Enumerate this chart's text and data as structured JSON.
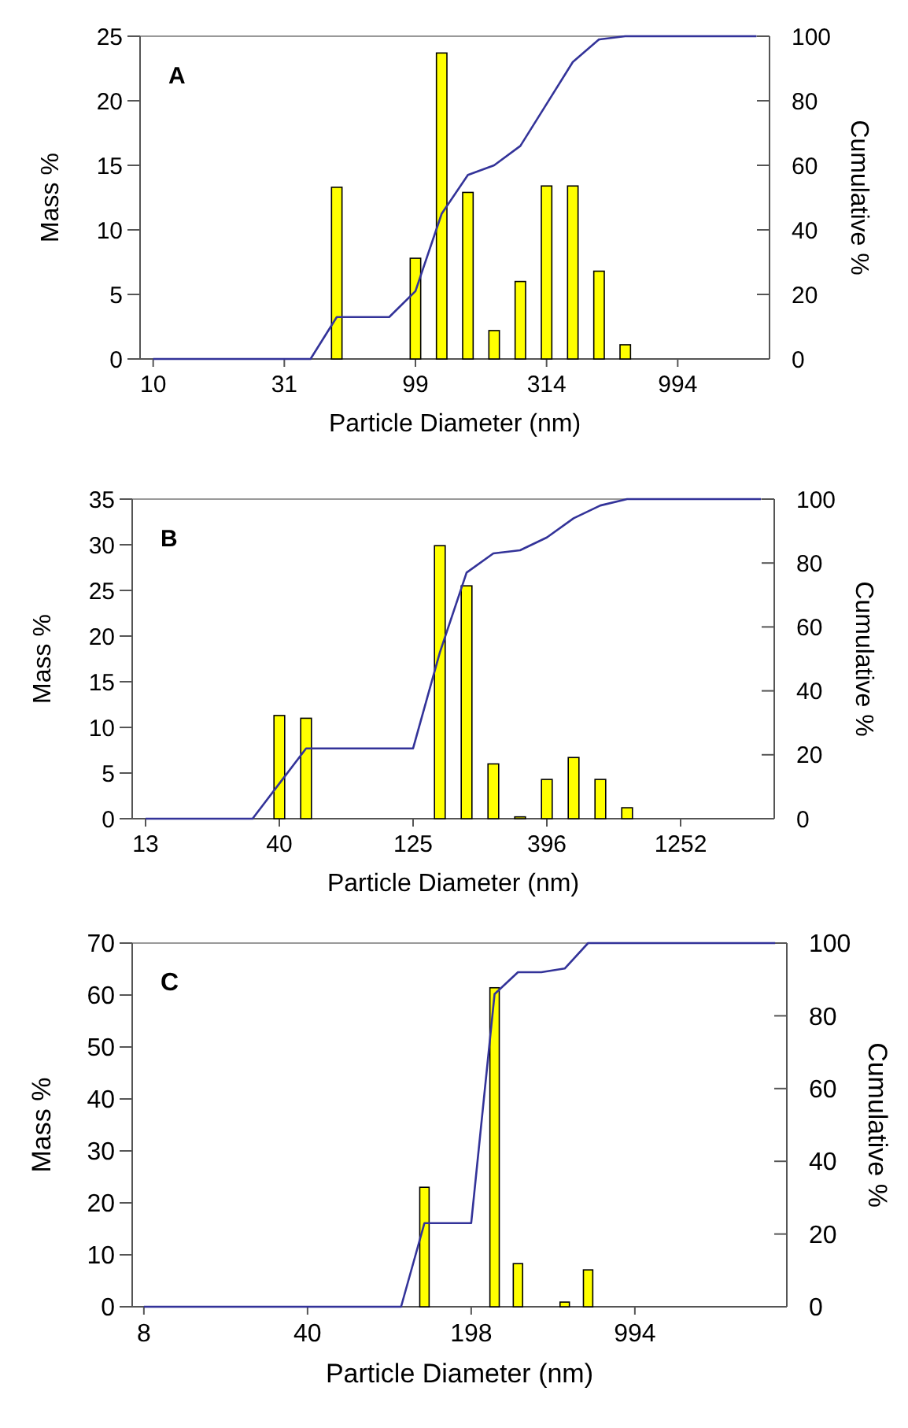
{
  "chart_data": [
    {
      "type": "bar",
      "annotations": [
        "A"
      ],
      "xlabel": "Particle Diameter (nm)",
      "ylabel": "Mass %",
      "y2label": "Cumulative %",
      "categories": [
        "10",
        null,
        null,
        null,
        null,
        "31",
        null,
        null,
        null,
        null,
        "99",
        null,
        null,
        null,
        null,
        "314",
        null,
        null,
        null,
        null,
        "994",
        null,
        null,
        null
      ],
      "series": [
        {
          "color": "#ffff00",
          "values": [
            null,
            null,
            null,
            null,
            null,
            null,
            null,
            13.3,
            null,
            null,
            7.8,
            23.7,
            12.9,
            2.2,
            6.0,
            13.4,
            13.4,
            6.8,
            1.1,
            null,
            null,
            null,
            null,
            null
          ]
        },
        {
          "type": "line",
          "axis": "y2",
          "color": "#333399",
          "values": [
            0,
            0,
            0,
            0,
            0,
            0,
            0,
            13,
            13,
            13,
            21,
            45,
            57,
            60,
            66,
            79,
            92,
            99,
            100,
            100,
            100,
            100,
            100,
            100
          ]
        }
      ],
      "ylim": [
        0,
        25
      ],
      "yticks": [
        0,
        5,
        10,
        15,
        20,
        25
      ],
      "y2lim": [
        0,
        100
      ],
      "y2ticks": [
        0,
        20,
        40,
        60,
        80,
        100
      ],
      "grid": false,
      "marker": "none",
      "line_style": "solid"
    },
    {
      "type": "bar",
      "annotations": [
        "B"
      ],
      "xlabel": "Particle Diameter (nm)",
      "ylabel": "Mass %",
      "y2label": "Cumulative %",
      "categories": [
        "13",
        null,
        null,
        null,
        null,
        "40",
        null,
        null,
        null,
        null,
        "125",
        null,
        null,
        null,
        null,
        "396",
        null,
        null,
        null,
        null,
        "1252",
        null,
        null,
        null
      ],
      "series": [
        {
          "color": "#ffff00",
          "values": [
            null,
            null,
            null,
            null,
            null,
            11.3,
            11.0,
            null,
            null,
            null,
            null,
            29.9,
            25.5,
            6.0,
            0.2,
            4.3,
            6.7,
            4.3,
            1.2,
            null,
            null,
            null,
            null,
            null
          ]
        },
        {
          "type": "line",
          "axis": "y2",
          "color": "#333399",
          "values": [
            0,
            0,
            0,
            0,
            0,
            11,
            22,
            22,
            22,
            22,
            22,
            52,
            77,
            83,
            84,
            88,
            94,
            98,
            100,
            100,
            100,
            100,
            100,
            100
          ]
        }
      ],
      "ylim": [
        0,
        35
      ],
      "yticks": [
        0,
        5,
        10,
        15,
        20,
        25,
        30,
        35
      ],
      "y2lim": [
        0,
        100
      ],
      "y2ticks": [
        0,
        20,
        40,
        60,
        80,
        100
      ],
      "grid": false,
      "marker": "none",
      "line_style": "solid"
    },
    {
      "type": "bar",
      "annotations": [
        "C"
      ],
      "xlabel": "Particle Diameter (nm)",
      "ylabel": "Mass %",
      "y2label": "Cumulative %",
      "categories": [
        "8",
        null,
        null,
        null,
        null,
        null,
        null,
        "40",
        null,
        null,
        null,
        null,
        null,
        null,
        "198",
        null,
        null,
        null,
        null,
        null,
        null,
        "994",
        null,
        null,
        null,
        null,
        null,
        null
      ],
      "series": [
        {
          "color": "#ffff00",
          "values": [
            null,
            null,
            null,
            null,
            null,
            null,
            null,
            null,
            null,
            null,
            null,
            null,
            23.0,
            null,
            null,
            61.4,
            8.3,
            null,
            0.9,
            7.1,
            null,
            null,
            null,
            null,
            null,
            null,
            null,
            null
          ]
        },
        {
          "type": "line",
          "axis": "y2",
          "color": "#333399",
          "values": [
            0,
            0,
            0,
            0,
            0,
            0,
            0,
            0,
            0,
            0,
            0,
            0,
            23,
            23,
            23,
            86,
            92,
            92,
            93,
            100,
            100,
            100,
            100,
            100,
            100,
            100,
            100,
            100
          ]
        }
      ],
      "ylim": [
        0,
        70
      ],
      "yticks": [
        0,
        10,
        20,
        30,
        40,
        50,
        60,
        70
      ],
      "y2lim": [
        0,
        100
      ],
      "y2ticks": [
        0,
        20,
        40,
        60,
        80,
        100
      ],
      "grid": false,
      "marker": "none",
      "line_style": "solid"
    }
  ]
}
